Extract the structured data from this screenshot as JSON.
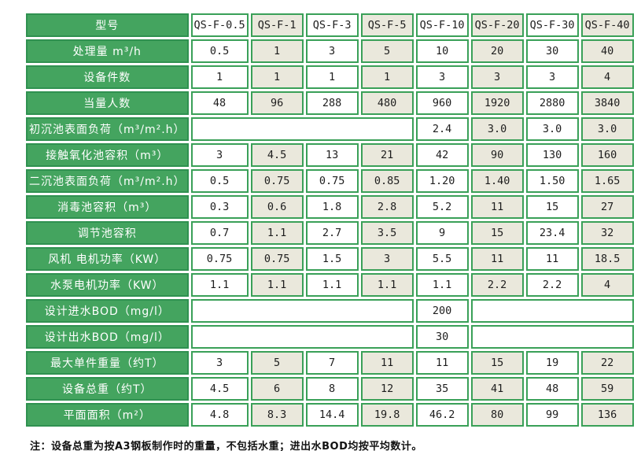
{
  "table": {
    "colors": {
      "label_bg": "#44a45f",
      "label_border": "#2f9150",
      "label_text": "#ffffff",
      "cell_border": "#3aa058",
      "cell_bg": "#ffffff",
      "cell_bg_alt": "#eae8dc",
      "cell_text": "#1d1d1d"
    },
    "header": {
      "label": "型号",
      "models": [
        "QS-F-0.5",
        "QS-F-1",
        "QS-F-3",
        "QS-F-5",
        "QS-F-10",
        "QS-F-20",
        "QS-F-30",
        "QS-F-40"
      ]
    },
    "rows": [
      {
        "type": "full",
        "label": "处理量 m³/h",
        "values": [
          "0.5",
          "1",
          "3",
          "5",
          "10",
          "20",
          "30",
          "40"
        ]
      },
      {
        "type": "full",
        "label": "设备件数",
        "values": [
          "1",
          "1",
          "1",
          "1",
          "3",
          "3",
          "3",
          "4"
        ]
      },
      {
        "type": "full",
        "label": "当量人数",
        "values": [
          "48",
          "96",
          "288",
          "480",
          "960",
          "1920",
          "2880",
          "3840"
        ]
      },
      {
        "type": "merged_left",
        "label": "初沉池表面负荷（m³/m².h）",
        "values": [
          "2.4",
          "3.0",
          "3.0",
          "3.0"
        ]
      },
      {
        "type": "full",
        "label": "接触氧化池容积（m³）",
        "values": [
          "3",
          "4.5",
          "13",
          "21",
          "42",
          "90",
          "130",
          "160"
        ]
      },
      {
        "type": "full",
        "label": "二沉池表面负荷（m³/m².h）",
        "values": [
          "0.5",
          "0.75",
          "0.75",
          "0.85",
          "1.20",
          "1.40",
          "1.50",
          "1.65"
        ]
      },
      {
        "type": "full",
        "label": "消毒池容积（m³）",
        "values": [
          "0.3",
          "0.6",
          "1.8",
          "2.8",
          "5.2",
          "11",
          "15",
          "27"
        ]
      },
      {
        "type": "full",
        "label": "调节池容积",
        "values": [
          "0.7",
          "1.1",
          "2.7",
          "3.5",
          "9",
          "15",
          "23.4",
          "32"
        ]
      },
      {
        "type": "full",
        "label": "风机 电机功率（KW）",
        "values": [
          "0.75",
          "0.75",
          "1.5",
          "3",
          "5.5",
          "11",
          "11",
          "18.5"
        ]
      },
      {
        "type": "full",
        "label": "水泵电机功率（KW）",
        "values": [
          "1.1",
          "1.1",
          "1.1",
          "1.1",
          "1.1",
          "2.2",
          "2.2",
          "4"
        ]
      },
      {
        "type": "single_mid",
        "label": "设计进水BOD（mg/l）",
        "value": "200"
      },
      {
        "type": "single_mid",
        "label": "设计出水BOD（mg/l）",
        "value": "30"
      },
      {
        "type": "full",
        "label": "最大单件重量（约T）",
        "values": [
          "3",
          "5",
          "7",
          "11",
          "11",
          "15",
          "19",
          "22"
        ]
      },
      {
        "type": "full",
        "label": "设备总重（约T）",
        "values": [
          "4.5",
          "6",
          "8",
          "12",
          "35",
          "41",
          "48",
          "59"
        ]
      },
      {
        "type": "full",
        "label": "平面面积（m²）",
        "values": [
          "4.8",
          "8.3",
          "14.4",
          "19.8",
          "46.2",
          "80",
          "99",
          "136"
        ]
      }
    ]
  },
  "note": "注：设备总重为按A3钢板制作时的重量，不包括水重；进出水BOD均按平均数计。"
}
